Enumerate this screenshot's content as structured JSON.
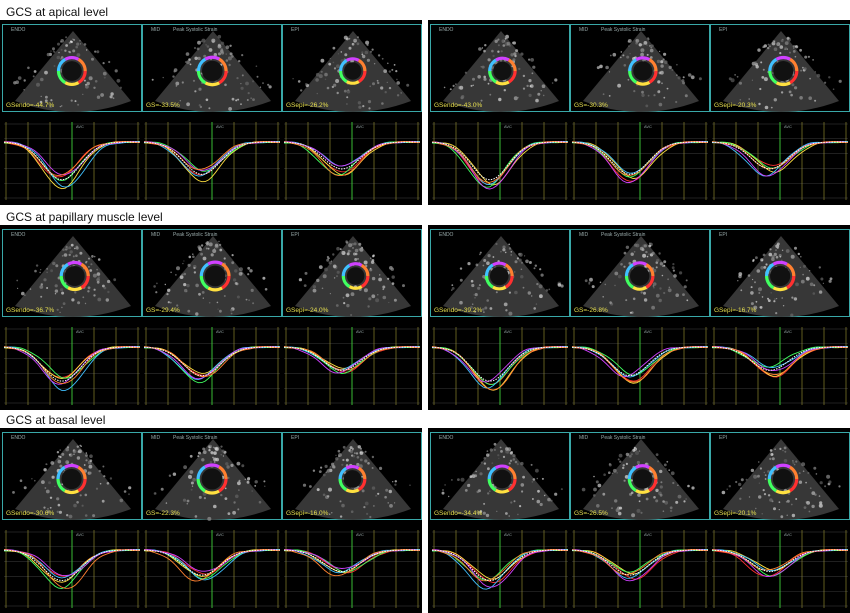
{
  "sections": [
    {
      "title": "GCS at apical level",
      "left": {
        "values": [
          "GSendo=-44.7%",
          "GS=-33.5%",
          "GSepi=-26.2%"
        ]
      },
      "right": {
        "values": [
          "GSendo=-43.0%",
          "GS=-30.3%",
          "GSepi=-20.3%"
        ]
      }
    },
    {
      "title": "GCS at papillary muscle level",
      "left": {
        "values": [
          "GSendo=-36.7%",
          "GS=-29.4%",
          "GSepi=-24.0%"
        ]
      },
      "right": {
        "values": [
          "GSendo=-39.2%",
          "GS=-26.8%",
          "GSepi=-16.7%"
        ]
      }
    },
    {
      "title": "GCS at basal level",
      "left": {
        "values": [
          "GSendo=-30.6%",
          "GS=-22.3%",
          "GSepi=-16.0%"
        ]
      },
      "right": {
        "values": [
          "GSendo=-34.4%",
          "GS=-26.5%",
          "GSepi=-20.1%"
        ]
      }
    }
  ],
  "layer_labels": [
    "ENDO",
    "MID",
    "EPI"
  ],
  "mid_sublabel": "Peak Systolic Strain",
  "avc_label": "AVC",
  "colors": {
    "panel_bg": "#000000",
    "frame": "#39a8a8",
    "value_text": "#e8e050",
    "gridline": "#c8c040",
    "avc_line": "#36c836",
    "segment_colors": [
      "#ff3030",
      "#ffe040",
      "#40ff60",
      "#40c0ff",
      "#d040ff",
      "#ff8030"
    ]
  }
}
